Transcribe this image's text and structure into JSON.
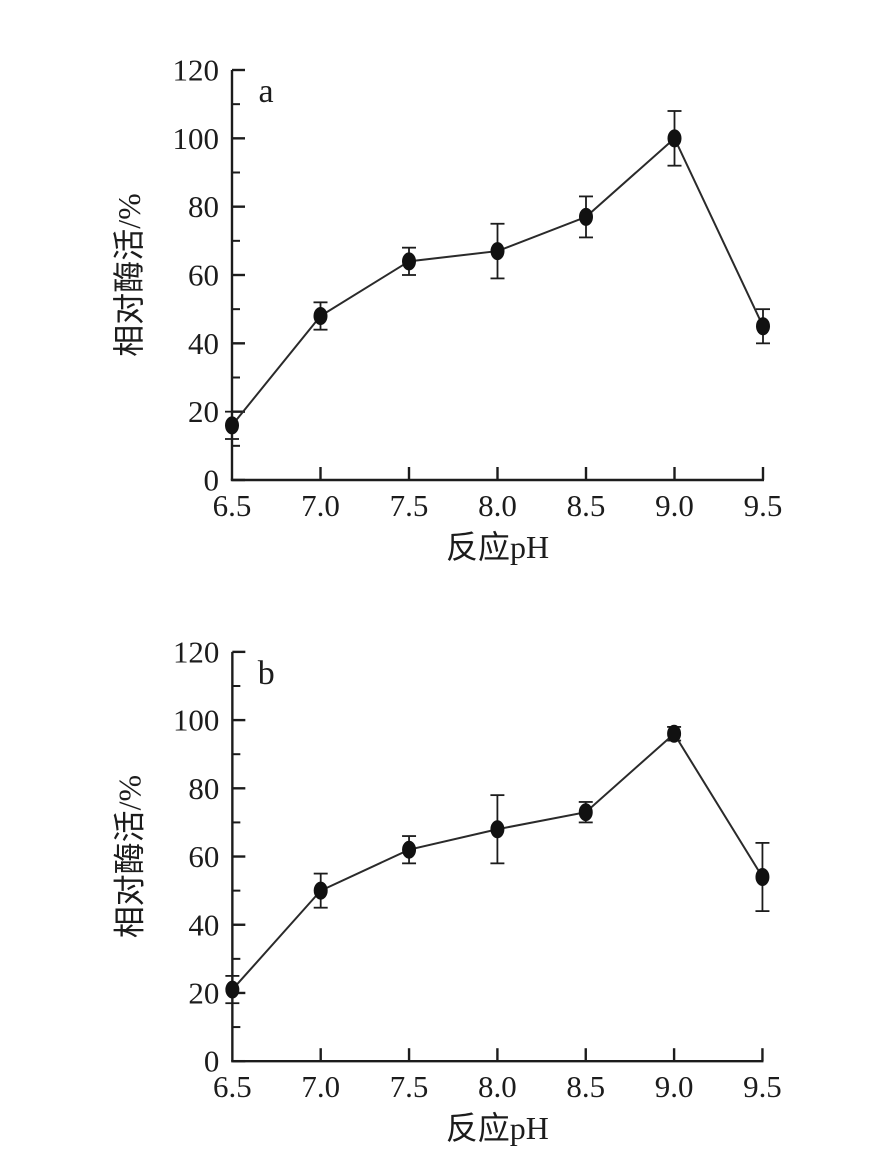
{
  "page": {
    "background": "#ffffff",
    "ink_color": "#1c1c1c"
  },
  "chart_data": [
    {
      "id": "a",
      "type": "line",
      "panel_label": "a",
      "title": "",
      "xlabel": "反应pH",
      "ylabel": "相对酶活/%",
      "x": [
        6.5,
        7.0,
        7.5,
        8.0,
        8.5,
        9.0,
        9.5
      ],
      "xtick_labels": [
        "6.5",
        "7.0",
        "7.5",
        "8.0",
        "8.5",
        "9.0",
        "9.5"
      ],
      "series": [
        {
          "name": "relative-enzyme-activity",
          "values": [
            16,
            48,
            64,
            67,
            77,
            100,
            45
          ],
          "yerr": [
            4,
            4,
            4,
            8,
            6,
            8,
            5
          ]
        }
      ],
      "xlim": [
        6.5,
        9.5
      ],
      "ylim": [
        0,
        120
      ],
      "ytick_major": [
        0,
        20,
        40,
        60,
        80,
        100,
        120
      ],
      "ytick_minor_step": 10,
      "marker": "filled-ellipse",
      "marker_color": "#111111",
      "line_color": "#2a2a2a",
      "grid": false,
      "legend": false
    },
    {
      "id": "b",
      "type": "line",
      "panel_label": "b",
      "title": "",
      "xlabel": "反应pH",
      "ylabel": "相对酶活/%",
      "x": [
        6.5,
        7.0,
        7.5,
        8.0,
        8.5,
        9.0,
        9.5
      ],
      "xtick_labels": [
        "6.5",
        "7.0",
        "7.5",
        "8.0",
        "8.5",
        "9.0",
        "9.5"
      ],
      "series": [
        {
          "name": "relative-enzyme-activity",
          "values": [
            21,
            50,
            62,
            68,
            73,
            96,
            54
          ],
          "yerr": [
            4,
            5,
            4,
            10,
            3,
            2,
            10
          ]
        }
      ],
      "xlim": [
        6.5,
        9.5
      ],
      "ylim": [
        0,
        120
      ],
      "ytick_major": [
        0,
        20,
        40,
        60,
        80,
        100,
        120
      ],
      "ytick_minor_step": 10,
      "marker": "filled-ellipse",
      "marker_color": "#111111",
      "line_color": "#2a2a2a",
      "grid": false,
      "legend": false
    }
  ]
}
